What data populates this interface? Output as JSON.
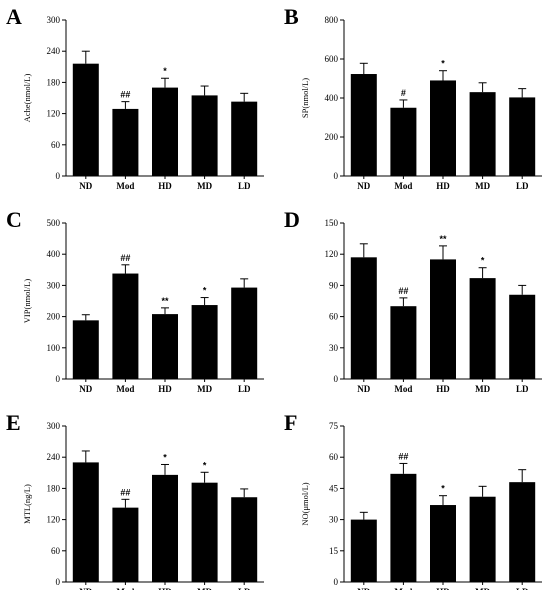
{
  "chart_data": [
    {
      "panel": "A",
      "type": "bar",
      "categories": [
        "ND",
        "Mod",
        "HD",
        "MD",
        "LD"
      ],
      "ylabel": "Ache(nmol/L)",
      "ylim": [
        0,
        300
      ],
      "yticks": [
        0,
        60,
        120,
        180,
        240,
        300
      ],
      "values": [
        216,
        129,
        170,
        155,
        143
      ],
      "errors": [
        24,
        14,
        18,
        18,
        16
      ],
      "annotations": [
        "",
        "##",
        "*",
        "",
        ""
      ]
    },
    {
      "panel": "B",
      "type": "bar",
      "categories": [
        "ND",
        "Mod",
        "HD",
        "MD",
        "LD"
      ],
      "ylabel": "SP(nmol/L)",
      "ylim": [
        0,
        800
      ],
      "yticks": [
        0,
        200,
        400,
        600,
        800
      ],
      "values": [
        523,
        350,
        490,
        430,
        403
      ],
      "errors": [
        55,
        40,
        50,
        48,
        45
      ],
      "annotations": [
        "",
        "#",
        "*",
        "",
        ""
      ]
    },
    {
      "panel": "C",
      "type": "bar",
      "categories": [
        "ND",
        "Mod",
        "HD",
        "MD",
        "LD"
      ],
      "ylabel": "VIP(nmol/L)",
      "ylim": [
        0,
        500
      ],
      "yticks": [
        0,
        100,
        200,
        300,
        400,
        500
      ],
      "values": [
        188,
        338,
        208,
        237,
        293
      ],
      "errors": [
        18,
        28,
        20,
        24,
        28
      ],
      "annotations": [
        "",
        "##",
        "**",
        "*",
        ""
      ]
    },
    {
      "panel": "D",
      "type": "bar",
      "categories": [
        "ND",
        "Mod",
        "HD",
        "MD",
        "LD"
      ],
      "ylabel": "",
      "ylim": [
        0,
        150
      ],
      "yticks": [
        0,
        30,
        60,
        90,
        120,
        150
      ],
      "values": [
        117,
        70,
        115,
        97,
        81
      ],
      "errors": [
        13,
        8,
        13,
        10,
        9
      ],
      "annotations": [
        "",
        "##",
        "**",
        "*",
        ""
      ]
    },
    {
      "panel": "E",
      "type": "bar",
      "categories": [
        "ND",
        "Mod",
        "HD",
        "MD",
        "LD"
      ],
      "ylabel": "MTL(ng/L)",
      "ylim": [
        0,
        300
      ],
      "yticks": [
        0,
        60,
        120,
        180,
        240,
        300
      ],
      "values": [
        230,
        143,
        206,
        191,
        163
      ],
      "errors": [
        22,
        16,
        20,
        20,
        16
      ],
      "annotations": [
        "",
        "##",
        "*",
        "*",
        ""
      ]
    },
    {
      "panel": "F",
      "type": "bar",
      "categories": [
        "ND",
        "Mod",
        "HD",
        "MD",
        "LD"
      ],
      "ylabel": "NO(μmol/L)",
      "ylim": [
        0,
        75
      ],
      "yticks": [
        0,
        15,
        30,
        45,
        60,
        75
      ],
      "values": [
        30,
        52,
        37,
        41,
        48
      ],
      "errors": [
        3.5,
        5,
        4.5,
        5,
        6
      ],
      "annotations": [
        "",
        "##",
        "*",
        "",
        ""
      ]
    }
  ]
}
